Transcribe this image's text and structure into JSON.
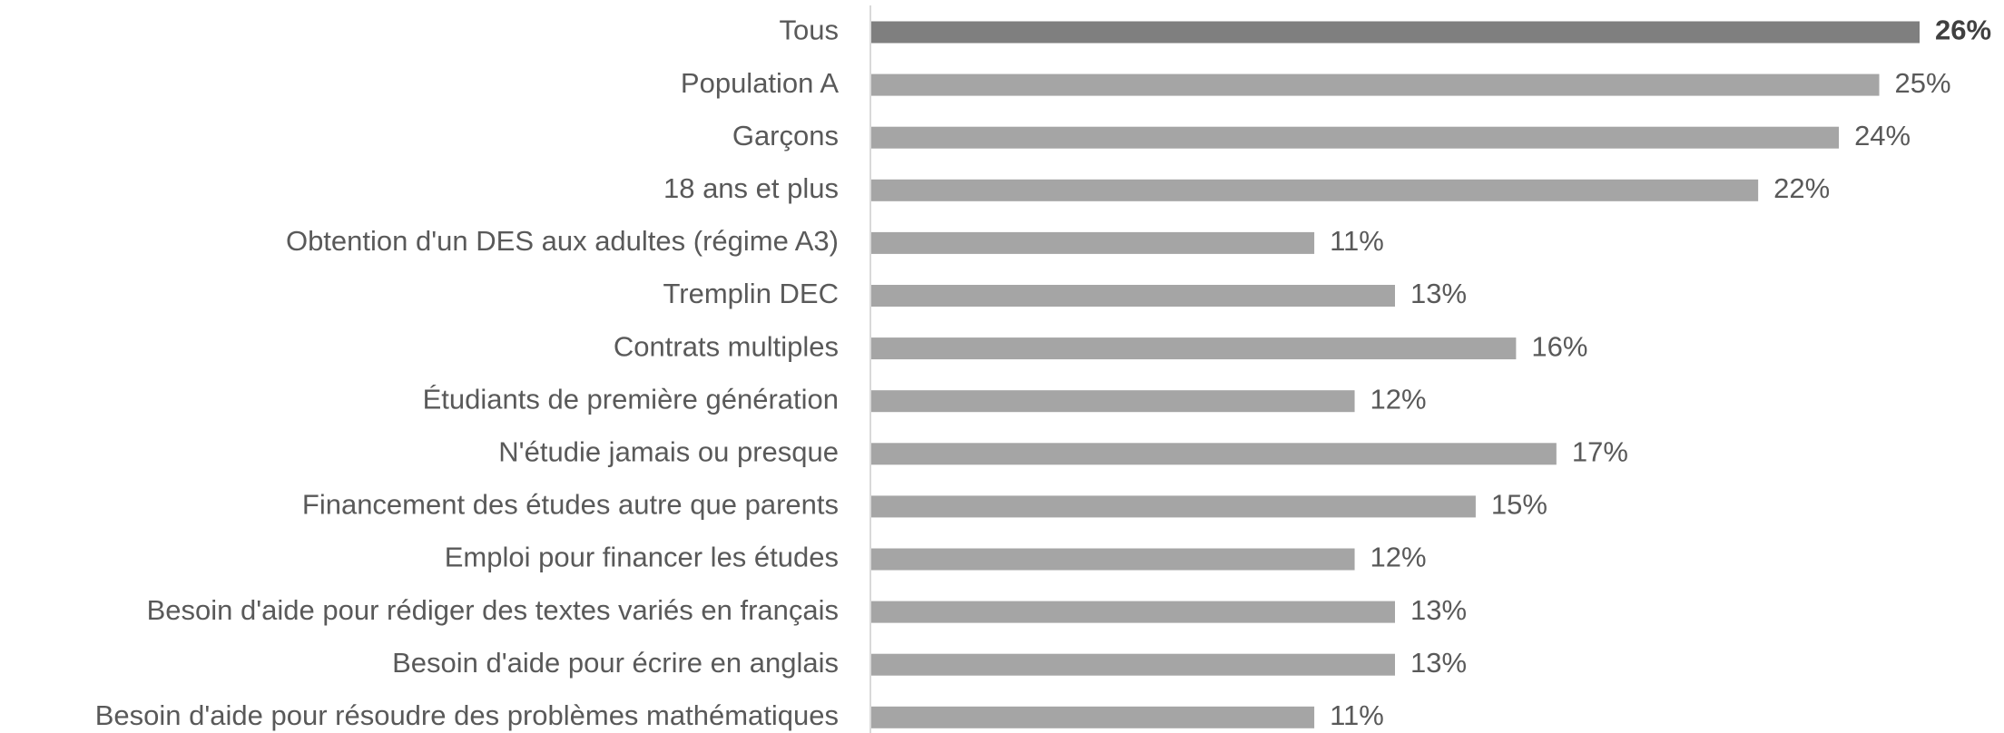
{
  "chart_data": {
    "type": "barh",
    "categories": [
      "Tous",
      "Population A",
      "Garçons",
      "18 ans et plus",
      "Obtention d'un DES aux adultes (régime A3)",
      "Tremplin DEC",
      "Contrats multiples",
      "Étudiants de première génération",
      "N'étudie jamais ou presque",
      "Financement des études autre que parents",
      "Emploi pour financer les études",
      "Besoin d'aide pour rédiger des textes variés en français",
      "Besoin d'aide pour écrire en anglais",
      "Besoin d'aide pour résoudre des problèmes mathématiques"
    ],
    "values": [
      26,
      25,
      24,
      22,
      11,
      13,
      16,
      12,
      17,
      15,
      12,
      13,
      13,
      11
    ],
    "value_labels": [
      "26%",
      "25%",
      "24%",
      "22%",
      "11%",
      "13%",
      "16%",
      "12%",
      "17%",
      "15%",
      "12%",
      "13%",
      "13%",
      "11%"
    ],
    "colors": [
      "#7f7f7f",
      "#a5a5a5",
      "#a5a5a5",
      "#a5a5a5",
      "#a5a5a5",
      "#a5a5a5",
      "#a5a5a5",
      "#a5a5a5",
      "#a5a5a5",
      "#a5a5a5",
      "#a5a5a5",
      "#a5a5a5",
      "#a5a5a5",
      "#a5a5a5"
    ],
    "value_label_bold": [
      true,
      false,
      false,
      false,
      false,
      false,
      false,
      false,
      false,
      false,
      false,
      false,
      false,
      false
    ]
  }
}
